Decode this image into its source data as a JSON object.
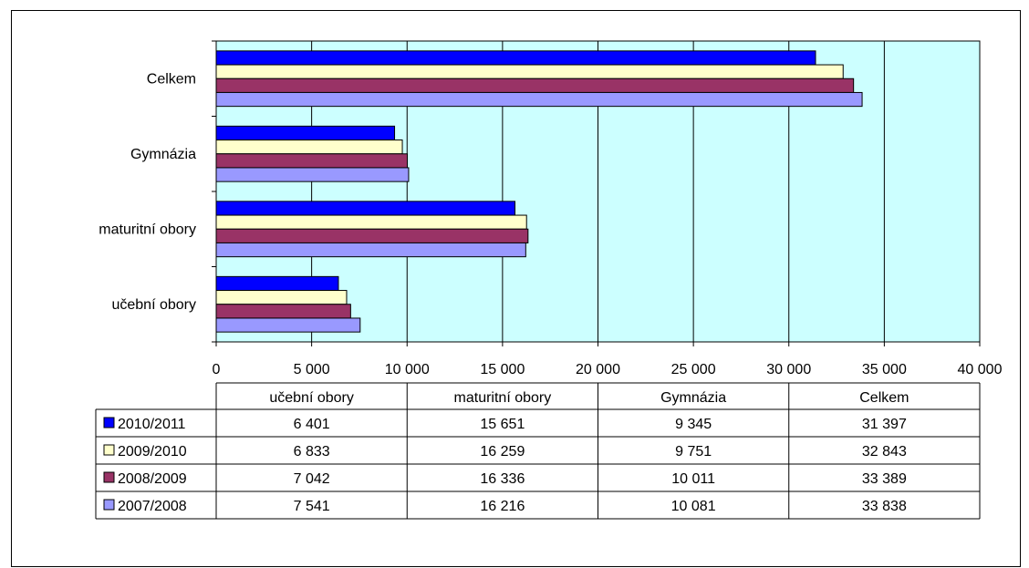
{
  "chart_data": {
    "type": "bar",
    "orientation": "horizontal",
    "categories": [
      "učební obory",
      "maturitní obory",
      "Gymnázia",
      "Celkem"
    ],
    "series": [
      {
        "name": "2010/2011",
        "color": "#0000FF",
        "values": [
          6401,
          15651,
          9345,
          31397
        ],
        "labels": [
          "6 401",
          "15 651",
          "9 345",
          "31 397"
        ]
      },
      {
        "name": "2009/2010",
        "color": "#FFFFCC",
        "values": [
          6833,
          16259,
          9751,
          32843
        ],
        "labels": [
          "6 833",
          "16 259",
          "9 751",
          "32 843"
        ]
      },
      {
        "name": "2008/2009",
        "color": "#993366",
        "values": [
          7042,
          16336,
          10011,
          33389
        ],
        "labels": [
          "7 042",
          "16 336",
          "10 011",
          "33 389"
        ]
      },
      {
        "name": "2007/2008",
        "color": "#9999FF",
        "values": [
          7541,
          16216,
          10081,
          33838
        ],
        "labels": [
          "7 541",
          "16 216",
          "10 081",
          "33 838"
        ]
      }
    ],
    "xlim": [
      0,
      40000
    ],
    "xticks": [
      0,
      5000,
      10000,
      15000,
      20000,
      25000,
      30000,
      35000,
      40000
    ],
    "xtick_labels": [
      "0",
      "5 000",
      "10 000",
      "15 000",
      "20 000",
      "25 000",
      "30 000",
      "35 000",
      "40 000"
    ],
    "grid": true,
    "plot_background": "#CCFFFF",
    "data_table": true
  }
}
